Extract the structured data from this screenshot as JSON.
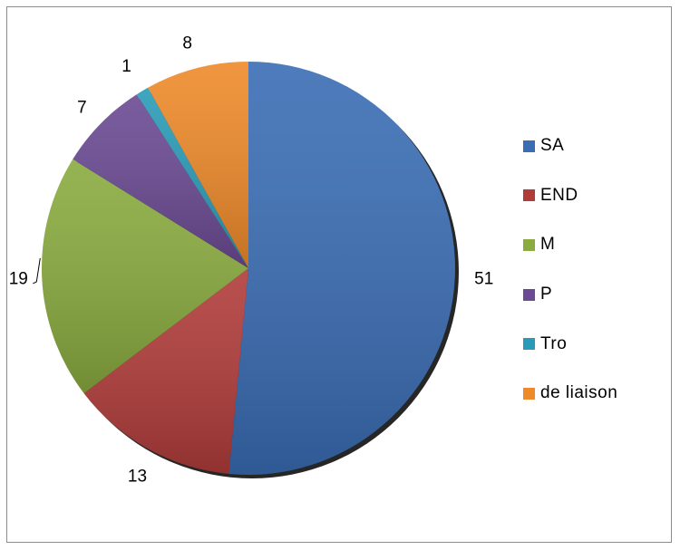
{
  "chart_data": {
    "type": "pie",
    "title": "",
    "slices": [
      {
        "label": "SA",
        "value": 51,
        "color": "#3a6db4"
      },
      {
        "label": "END",
        "value": 13,
        "color": "#b03c3a"
      },
      {
        "label": "M",
        "value": 19,
        "color": "#8aab3f"
      },
      {
        "label": "P",
        "value": 7,
        "color": "#6b4a93"
      },
      {
        "label": "Tro",
        "value": 1,
        "color": "#2a9bb7"
      },
      {
        "label": "de liaison",
        "value": 8,
        "color": "#ee8a2a"
      }
    ],
    "data_labels_shown": true,
    "legend_position": "right",
    "start_angle": "top, clockwise",
    "shadow": true
  }
}
